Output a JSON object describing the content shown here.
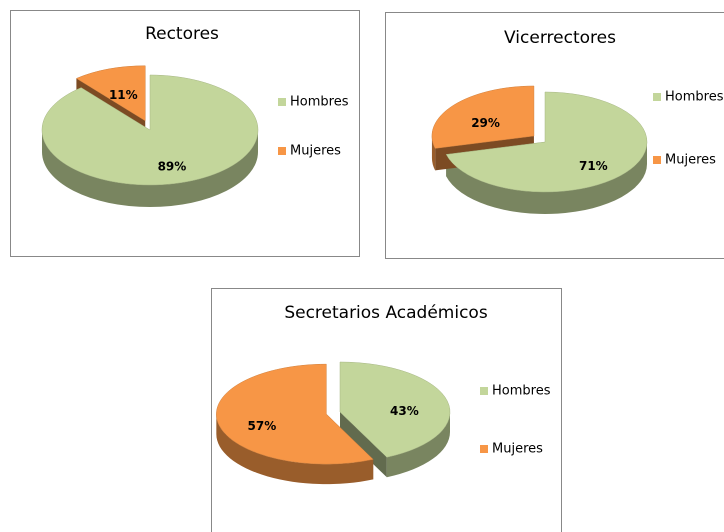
{
  "chart_data": [
    {
      "type": "pie",
      "title": "Rectores",
      "categories": [
        "Hombres",
        "Mujeres"
      ],
      "values": [
        89,
        11
      ],
      "value_labels": [
        "89%",
        "11%"
      ],
      "colors": [
        "#c3d69b",
        "#f79646"
      ],
      "legend": "right"
    },
    {
      "type": "pie",
      "title": "Vicerrectores",
      "categories": [
        "Hombres",
        "Mujeres"
      ],
      "values": [
        71,
        29
      ],
      "value_labels": [
        "71%",
        "29%"
      ],
      "colors": [
        "#c3d69b",
        "#f79646"
      ],
      "legend": "right"
    },
    {
      "type": "pie",
      "title": "Secretarios Académicos",
      "categories": [
        "Hombres",
        "Mujeres"
      ],
      "values": [
        43,
        57
      ],
      "value_labels": [
        "43%",
        "57%"
      ],
      "colors": [
        "#c3d69b",
        "#f79646"
      ],
      "legend": "right"
    }
  ]
}
